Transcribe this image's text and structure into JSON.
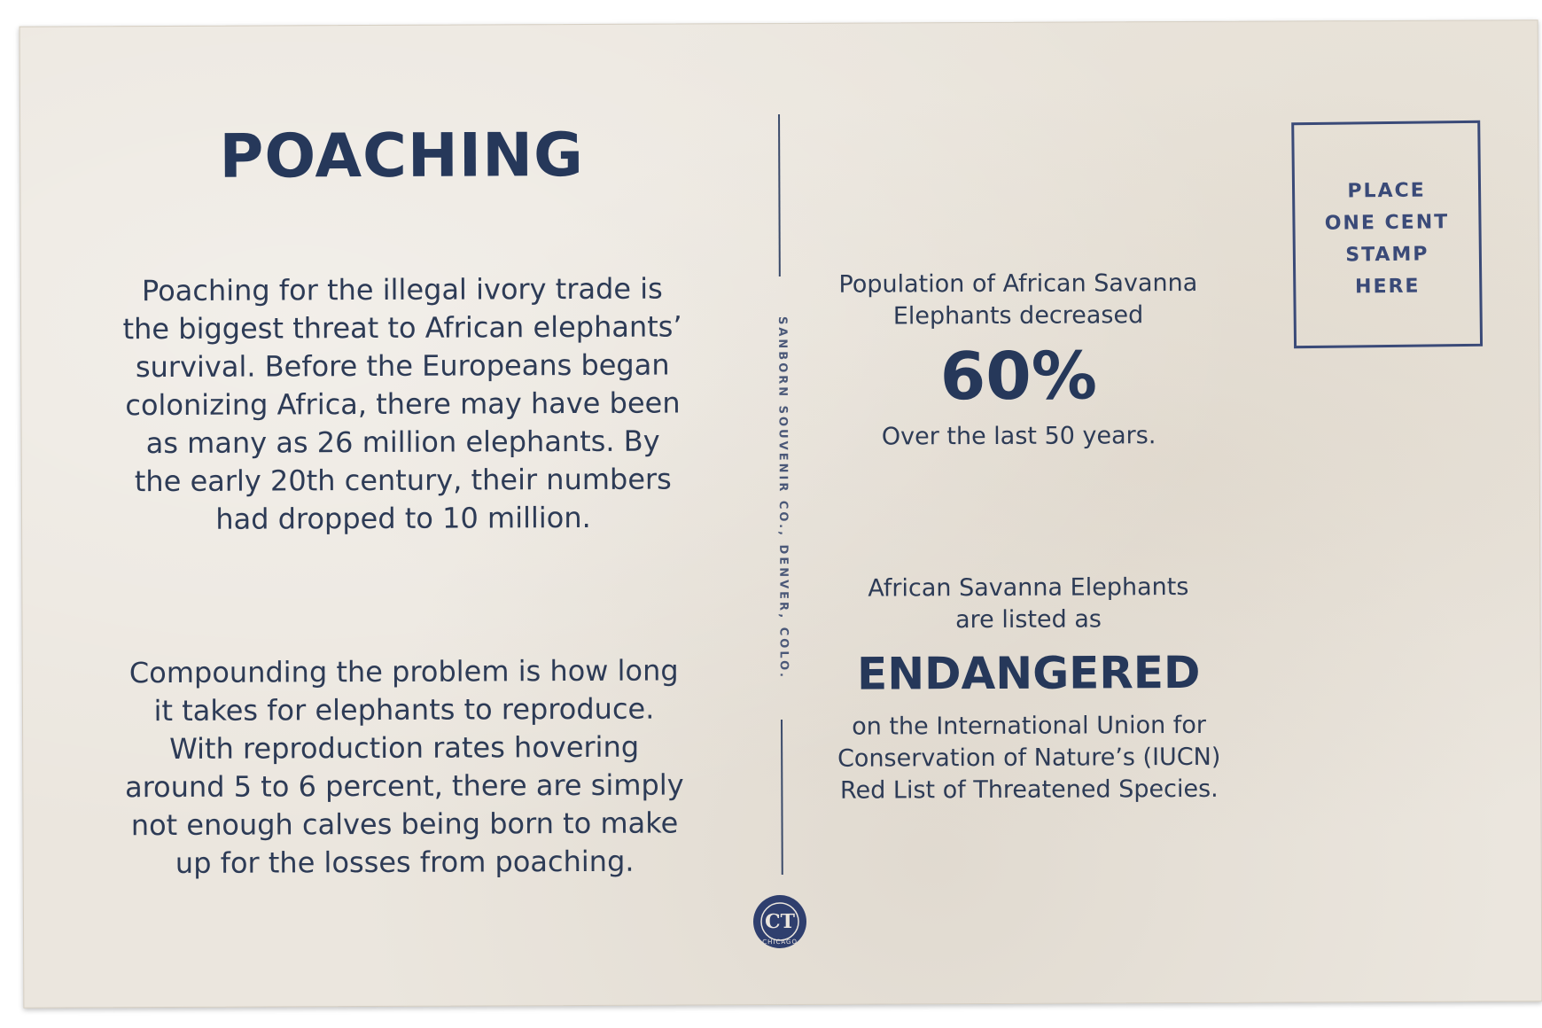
{
  "left": {
    "title": "POACHING",
    "paragraph_1": "Poaching for the illegal ivory trade is the biggest threat to African elephants’ survival. Before the Europeans began colonizing Africa, there may have been as many as 26 million elephants. By the early 20th century, their numbers had dropped to 10 million.",
    "paragraph_2": "Compounding the problem is how long it takes for elephants to reproduce. With reproduction rates hovering around 5 to 6 percent, there are simply not enough calves being born to make up for the losses from poaching."
  },
  "divider": {
    "imprint": "SANBORN SOUVENIR CO., DENVER, COLO.",
    "logo_letters": "CT",
    "logo_city": "CHICAGO"
  },
  "stat_population": {
    "line_1": "Population of African Savanna",
    "line_2": "Elephants decreased",
    "value": "60%",
    "footnote": "Over the last 50 years."
  },
  "stat_status": {
    "line_1": "African Savanna Elephants",
    "line_2": "are listed as",
    "status": "ENDANGERED",
    "line_3": "on the International Union for",
    "line_4": "Conservation of Nature’s (IUCN)",
    "line_5": "Red List of Threatened Species."
  },
  "stamp": {
    "line_1": "PLACE",
    "line_2": "ONE CENT",
    "line_3": "STAMP",
    "line_4": "HERE"
  },
  "colors": {
    "ink": "#26385a",
    "card": "#ebe6de",
    "stamp_ink": "#3a4a78"
  }
}
